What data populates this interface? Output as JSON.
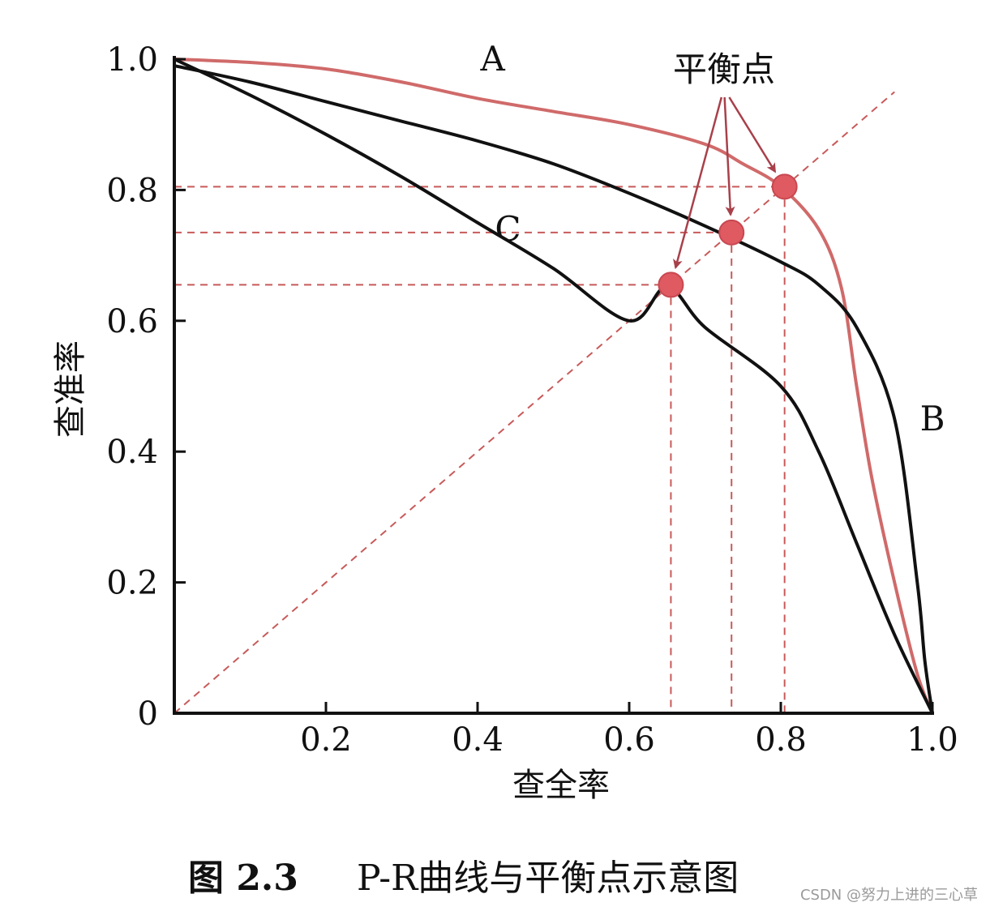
{
  "chart_data": {
    "type": "line",
    "xlabel": "查全率",
    "ylabel": "查准率",
    "xlim": [
      0,
      1.0
    ],
    "ylim": [
      0,
      1.0
    ],
    "x_ticks": [
      "0.2",
      "0.4",
      "0.6",
      "0.8",
      "1.0"
    ],
    "y_ticks": [
      "0",
      "0.2",
      "0.4",
      "0.6",
      "0.8",
      "1.0"
    ],
    "grid": false,
    "reference_line": {
      "type": "diagonal",
      "from": [
        0,
        0
      ],
      "to": [
        0.95,
        0.95
      ],
      "style": "dashed",
      "color": "#c85a5a"
    },
    "series": [
      {
        "name": "A",
        "color": "#d06a6a",
        "points": [
          [
            0,
            1.0
          ],
          [
            0.1,
            0.995
          ],
          [
            0.2,
            0.985
          ],
          [
            0.3,
            0.965
          ],
          [
            0.4,
            0.94
          ],
          [
            0.5,
            0.92
          ],
          [
            0.6,
            0.9
          ],
          [
            0.7,
            0.87
          ],
          [
            0.75,
            0.84
          ],
          [
            0.8,
            0.805
          ],
          [
            0.85,
            0.74
          ],
          [
            0.88,
            0.65
          ],
          [
            0.9,
            0.5
          ],
          [
            0.92,
            0.36
          ],
          [
            0.95,
            0.2
          ],
          [
            0.98,
            0.06
          ],
          [
            1.0,
            0.0
          ]
        ],
        "label_pos": [
          0.42,
          1.0
        ]
      },
      {
        "name": "B",
        "color": "#111111",
        "points": [
          [
            0,
            0.99
          ],
          [
            0.1,
            0.965
          ],
          [
            0.2,
            0.935
          ],
          [
            0.3,
            0.905
          ],
          [
            0.4,
            0.875
          ],
          [
            0.5,
            0.84
          ],
          [
            0.6,
            0.795
          ],
          [
            0.7,
            0.745
          ],
          [
            0.8,
            0.69
          ],
          [
            0.85,
            0.655
          ],
          [
            0.9,
            0.59
          ],
          [
            0.95,
            0.45
          ],
          [
            0.98,
            0.2
          ],
          [
            0.99,
            0.08
          ],
          [
            1.0,
            0.0
          ]
        ],
        "label_pos": [
          1.0,
          0.45
        ]
      },
      {
        "name": "C",
        "color": "#111111",
        "points": [
          [
            0,
            1.0
          ],
          [
            0.1,
            0.945
          ],
          [
            0.2,
            0.885
          ],
          [
            0.3,
            0.82
          ],
          [
            0.4,
            0.75
          ],
          [
            0.5,
            0.68
          ],
          [
            0.6,
            0.6
          ],
          [
            0.65,
            0.652
          ],
          [
            0.7,
            0.59
          ],
          [
            0.8,
            0.5
          ],
          [
            0.85,
            0.4
          ],
          [
            0.9,
            0.26
          ],
          [
            0.95,
            0.12
          ],
          [
            1.0,
            0.0
          ]
        ],
        "label_pos": [
          0.44,
          0.74
        ]
      }
    ],
    "break_even_points": [
      {
        "series": "A",
        "x": 0.805,
        "y": 0.805
      },
      {
        "series": "B",
        "x": 0.735,
        "y": 0.735
      },
      {
        "series": "C",
        "x": 0.655,
        "y": 0.655
      }
    ],
    "annotation": {
      "text": "平衡点",
      "arrows_to": [
        "A",
        "B",
        "C"
      ]
    }
  },
  "caption": {
    "figure_no": "图 2.3",
    "text": "P-R曲线与平衡点示意图"
  },
  "watermark": "CSDN @努力上进的三心草"
}
